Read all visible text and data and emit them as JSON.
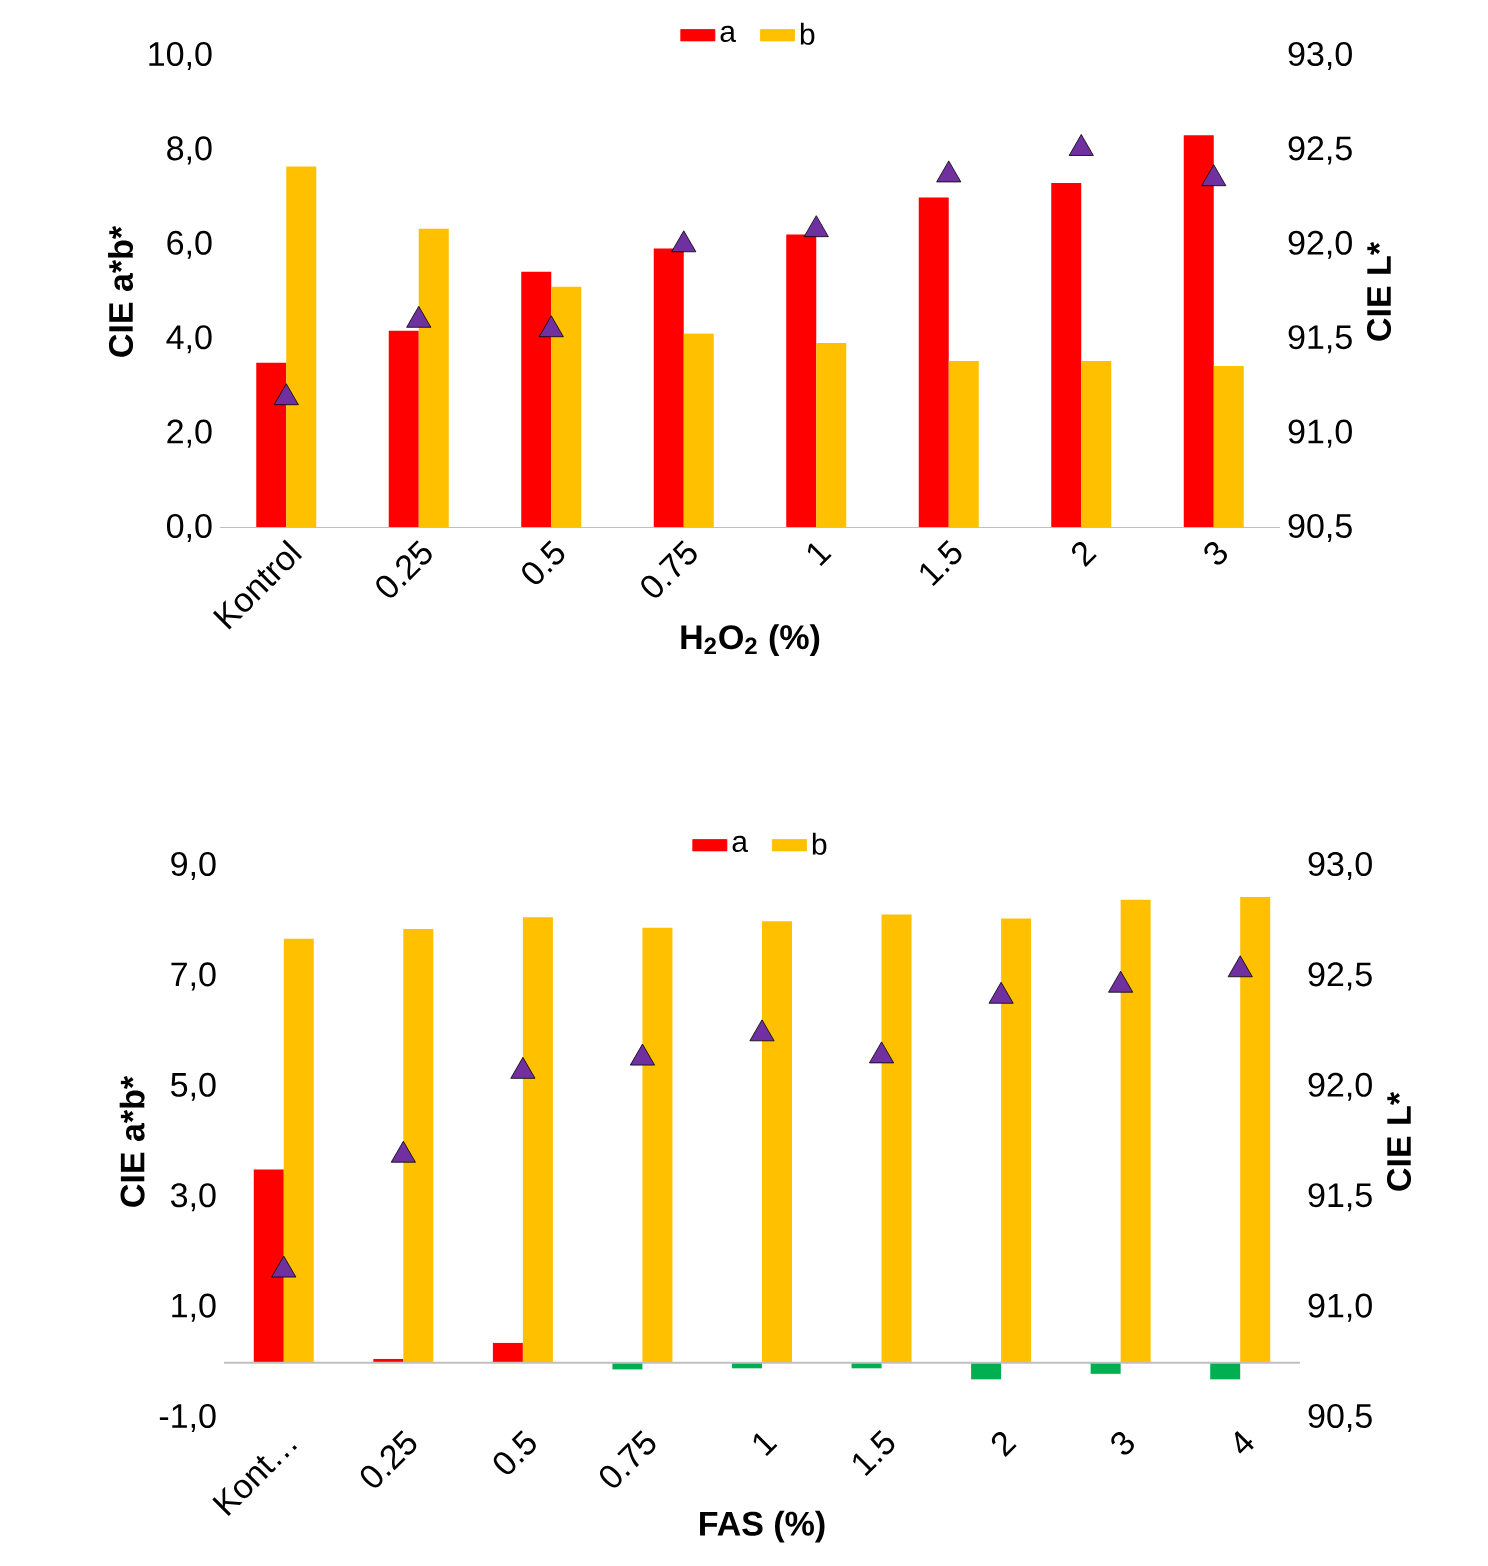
{
  "chart_data": [
    {
      "type": "bar",
      "xlabel": "H$_{2}$O$_{2}$ (%)",
      "ylabel": "CIE a*b*",
      "y2label": "CIE L*",
      "legend": "top",
      "categories": [
        "Kontrol",
        "0.25",
        "0.5",
        "0.75",
        "1",
        "1.5",
        "2",
        "3"
      ],
      "series": [
        {
          "name": "a",
          "color": "#ff0000",
          "values": [
            3.5,
            4.18,
            5.43,
            5.92,
            6.22,
            7.0,
            7.31,
            8.32
          ]
        },
        {
          "name": "b",
          "color": "#ffc000",
          "values": [
            7.66,
            6.34,
            5.11,
            4.12,
            3.92,
            3.54,
            3.54,
            3.43
          ]
        },
        {
          "type": "scatter",
          "axis": "y2",
          "marker": "triangle",
          "color": "#7030a0",
          "values": [
            91.19,
            91.6,
            91.55,
            92.0,
            92.08,
            92.37,
            92.51,
            92.35
          ]
        }
      ],
      "ylim": [
        0,
        10
      ],
      "yticks": [
        {
          "value": 0,
          "label": "0,0"
        },
        {
          "value": 2,
          "label": "2,0"
        },
        {
          "value": 4,
          "label": "4,0"
        },
        {
          "value": 6,
          "label": "6,0"
        },
        {
          "value": 8,
          "label": "8,0"
        },
        {
          "value": 10,
          "label": "10,0"
        }
      ],
      "y2lim": [
        90.5,
        93
      ],
      "y2ticks": [
        {
          "value": 90.5,
          "label": "90,5"
        },
        {
          "value": 91,
          "label": "91,0"
        },
        {
          "value": 91.5,
          "label": "91,5"
        },
        {
          "value": 92,
          "label": "92,0"
        },
        {
          "value": 92.5,
          "label": "92,5"
        },
        {
          "value": 93,
          "label": "93,0"
        }
      ]
    },
    {
      "type": "bar",
      "xlabel": "FAS (%)",
      "ylabel": "CIE a*b*",
      "y2label": "CIE L*",
      "legend": "top",
      "categories": [
        "Kont…",
        "0.25",
        "0.5",
        "0.75",
        "1",
        "1.5",
        "2",
        "3",
        "4"
      ],
      "series": [
        {
          "name": "a",
          "color": "#ff0000",
          "colors": [
            "#ff0000",
            "#ff0000",
            "#ff0000",
            "#00b050",
            "#00b050",
            "#00b050",
            "#00b050",
            "#00b050",
            "#00b050"
          ],
          "values": [
            3.5,
            0.07,
            0.36,
            -0.12,
            -0.1,
            -0.1,
            -0.3,
            -0.2,
            -0.3
          ]
        },
        {
          "name": "b",
          "color": "#ffc000",
          "values": [
            7.68,
            7.86,
            8.07,
            7.88,
            8.0,
            8.12,
            8.05,
            8.39,
            8.44
          ]
        },
        {
          "type": "scatter",
          "axis": "y2",
          "marker": "triangle",
          "color": "#7030a0",
          "values": [
            91.17,
            91.69,
            92.07,
            92.13,
            92.24,
            92.14,
            92.41,
            92.46,
            92.53
          ]
        }
      ],
      "ylim": [
        -1,
        9
      ],
      "yticks": [
        {
          "value": -1,
          "label": "-1,0"
        },
        {
          "value": 1,
          "label": "1,0"
        },
        {
          "value": 3,
          "label": "3,0"
        },
        {
          "value": 5,
          "label": "5,0"
        },
        {
          "value": 7,
          "label": "7,0"
        },
        {
          "value": 9,
          "label": "9,0"
        }
      ],
      "y2lim": [
        90.5,
        93
      ],
      "y2ticks": [
        {
          "value": 90.5,
          "label": "90,5"
        },
        {
          "value": 91,
          "label": "91,0"
        },
        {
          "value": 91.5,
          "label": "91,5"
        },
        {
          "value": 92,
          "label": "92,0"
        },
        {
          "value": 92.5,
          "label": "92,5"
        },
        {
          "value": 93,
          "label": "93,0"
        }
      ]
    }
  ]
}
